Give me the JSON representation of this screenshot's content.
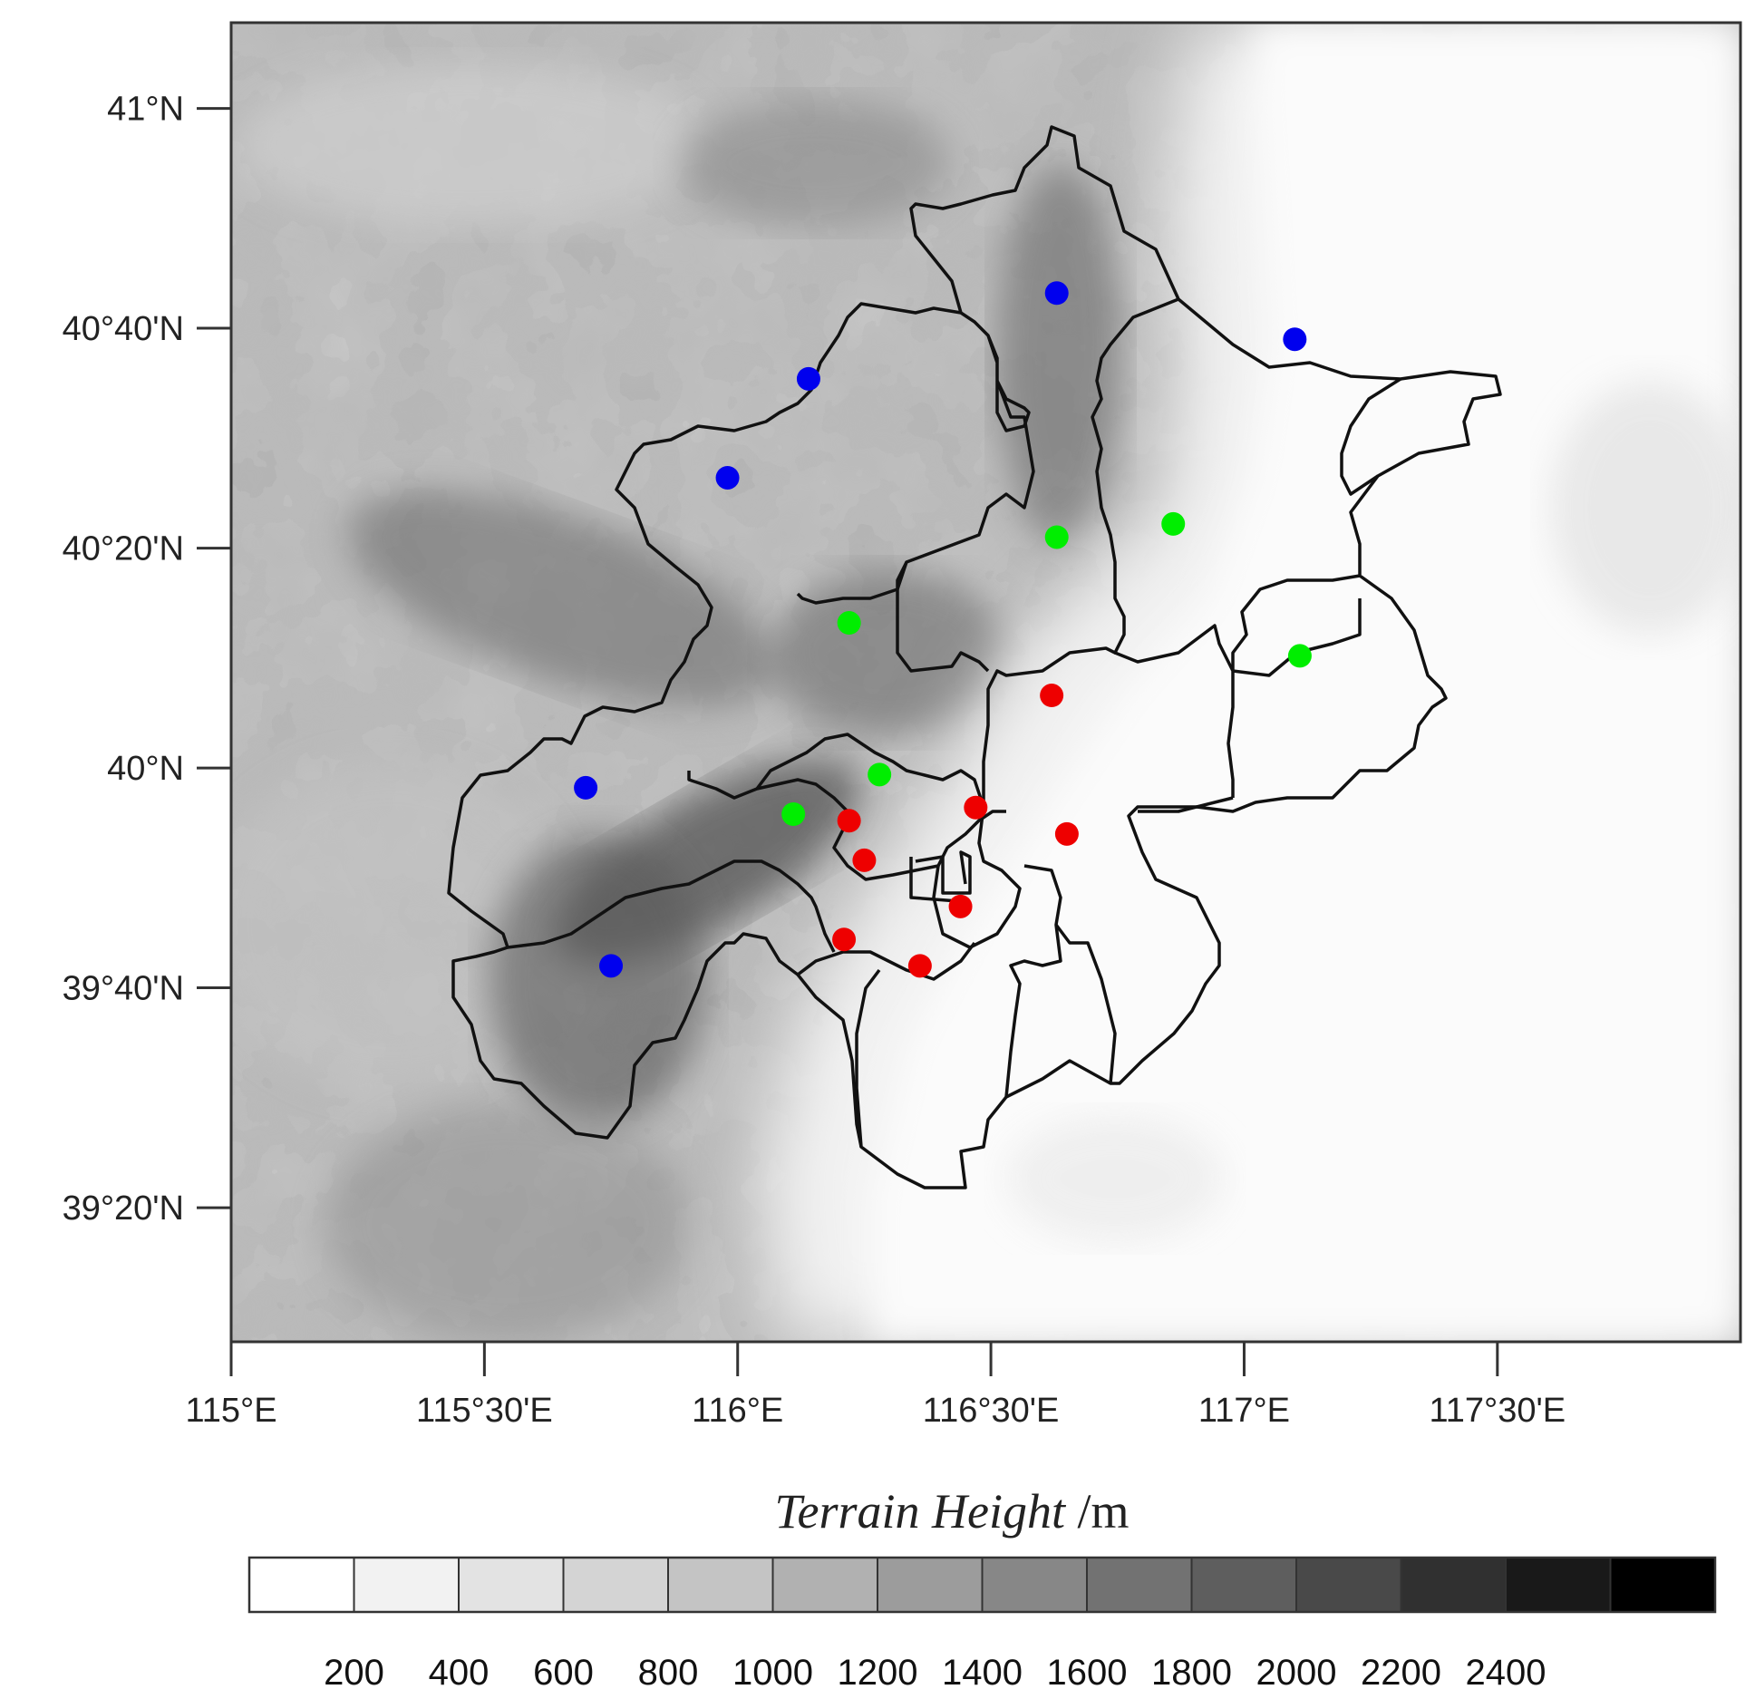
{
  "map": {
    "lon_range": [
      115.0,
      117.98
    ],
    "lat_range": [
      39.13,
      41.13
    ],
    "lat_ticks": [
      {
        "value": 41.0,
        "label": "41°N"
      },
      {
        "value": 40.6667,
        "label": "40°40'N"
      },
      {
        "value": 40.3333,
        "label": "40°20'N"
      },
      {
        "value": 40.0,
        "label": "40°N"
      },
      {
        "value": 39.6667,
        "label": "39°40'N"
      },
      {
        "value": 39.3333,
        "label": "39°20'N"
      }
    ],
    "lon_ticks": [
      {
        "value": 115.0,
        "label": "115°E"
      },
      {
        "value": 115.5,
        "label": "115°30'E"
      },
      {
        "value": 116.0,
        "label": "116°E"
      },
      {
        "value": 116.5,
        "label": "116°30'E"
      },
      {
        "value": 117.0,
        "label": "117°E"
      },
      {
        "value": 117.5,
        "label": "117°30'E"
      }
    ],
    "marker_colors": {
      "blue": "#0000ee",
      "green": "#00ee00",
      "red": "#ee0000"
    },
    "stations": [
      {
        "lon": 116.63,
        "lat": 40.72,
        "color": "blue"
      },
      {
        "lon": 117.1,
        "lat": 40.65,
        "color": "blue"
      },
      {
        "lon": 116.14,
        "lat": 40.59,
        "color": "blue"
      },
      {
        "lon": 115.98,
        "lat": 40.44,
        "color": "blue"
      },
      {
        "lon": 115.7,
        "lat": 39.97,
        "color": "blue"
      },
      {
        "lon": 115.75,
        "lat": 39.7,
        "color": "blue"
      },
      {
        "lon": 116.63,
        "lat": 40.35,
        "color": "green"
      },
      {
        "lon": 116.86,
        "lat": 40.37,
        "color": "green"
      },
      {
        "lon": 116.22,
        "lat": 40.22,
        "color": "green"
      },
      {
        "lon": 117.11,
        "lat": 40.17,
        "color": "green"
      },
      {
        "lon": 116.28,
        "lat": 39.99,
        "color": "green"
      },
      {
        "lon": 116.11,
        "lat": 39.93,
        "color": "green"
      },
      {
        "lon": 116.62,
        "lat": 40.11,
        "color": "red"
      },
      {
        "lon": 116.47,
        "lat": 39.94,
        "color": "red"
      },
      {
        "lon": 116.65,
        "lat": 39.9,
        "color": "red"
      },
      {
        "lon": 116.22,
        "lat": 39.92,
        "color": "red"
      },
      {
        "lon": 116.25,
        "lat": 39.86,
        "color": "red"
      },
      {
        "lon": 116.44,
        "lat": 39.79,
        "color": "red"
      },
      {
        "lon": 116.21,
        "lat": 39.74,
        "color": "red"
      },
      {
        "lon": 116.36,
        "lat": 39.7,
        "color": "red"
      }
    ]
  },
  "caption": {
    "title_italic": "Terrain Height",
    "unit": " /m"
  },
  "colorbar": {
    "colors": [
      "#ffffff",
      "#f2f2f2",
      "#e3e3e3",
      "#d4d4d4",
      "#c4c4c4",
      "#b1b1b1",
      "#9c9c9c",
      "#878787",
      "#727272",
      "#5e5e5e",
      "#494949",
      "#303030",
      "#191919",
      "#000000"
    ],
    "labels": [
      "200",
      "400",
      "600",
      "800",
      "1000",
      "1200",
      "1400",
      "1600",
      "1800",
      "2000",
      "2200",
      "2400"
    ]
  }
}
